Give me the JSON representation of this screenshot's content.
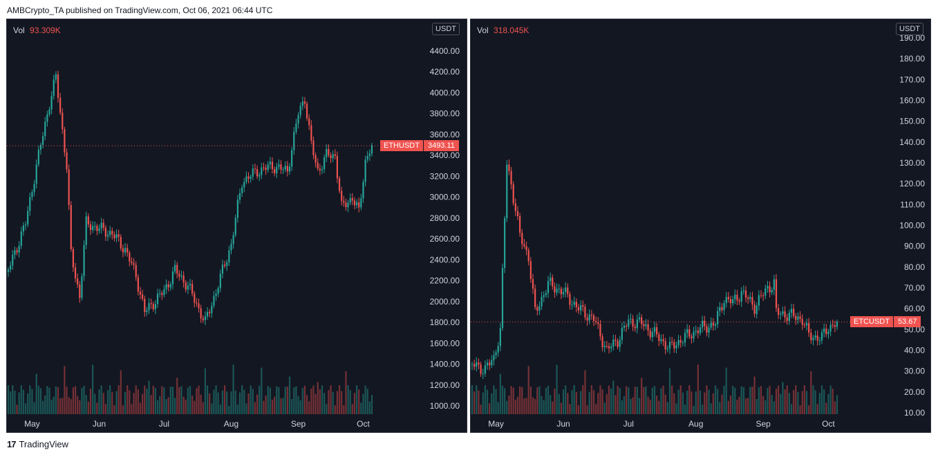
{
  "header": {
    "text": "AMBCrypto_TA published on TradingView.com, Oct 06, 2021 06:44 UTC"
  },
  "footer": {
    "brand": "TradingView",
    "logo_text": "17"
  },
  "colors": {
    "up": "#26a69a",
    "down": "#ef5350",
    "background": "#131722",
    "text": "#d1d4dc"
  },
  "chart_data": [
    {
      "type": "candlestick",
      "symbol": "ETHUSDT",
      "currency": "USDT",
      "last_price": "3493.11",
      "volume_label": "Vol",
      "volume_value": "93.309K",
      "x_tick_labels": [
        "May",
        "Jun",
        "Jul",
        "Aug",
        "Sep",
        "Oct"
      ],
      "y_tick_labels": [
        "4400.00",
        "4200.00",
        "4000.00",
        "3800.00",
        "3600.00",
        "3400.00",
        "3200.00",
        "3000.00",
        "2800.00",
        "2600.00",
        "2400.00",
        "2200.00",
        "2000.00",
        "1800.00",
        "1600.00",
        "1400.00",
        "1200.00",
        "1000.00"
      ],
      "ylim": [
        1000,
        4400
      ],
      "anchors": [
        {
          "date": "2021-04-20",
          "price": 2300
        },
        {
          "date": "2021-04-28",
          "price": 2750
        },
        {
          "date": "2021-05-03",
          "price": 3300
        },
        {
          "date": "2021-05-09",
          "price": 3900
        },
        {
          "date": "2021-05-12",
          "price": 4150
        },
        {
          "date": "2021-05-17",
          "price": 3300
        },
        {
          "date": "2021-05-19",
          "price": 2450
        },
        {
          "date": "2021-05-23",
          "price": 2050
        },
        {
          "date": "2021-05-26",
          "price": 2750
        },
        {
          "date": "2021-06-01",
          "price": 2700
        },
        {
          "date": "2021-06-07",
          "price": 2650
        },
        {
          "date": "2021-06-13",
          "price": 2500
        },
        {
          "date": "2021-06-18",
          "price": 2250
        },
        {
          "date": "2021-06-22",
          "price": 1900
        },
        {
          "date": "2021-07-01",
          "price": 2100
        },
        {
          "date": "2021-07-06",
          "price": 2300
        },
        {
          "date": "2021-07-12",
          "price": 2150
        },
        {
          "date": "2021-07-20",
          "price": 1800
        },
        {
          "date": "2021-07-25",
          "price": 2100
        },
        {
          "date": "2021-08-01",
          "price": 2550
        },
        {
          "date": "2021-08-06",
          "price": 3150
        },
        {
          "date": "2021-08-13",
          "price": 3250
        },
        {
          "date": "2021-08-20",
          "price": 3300
        },
        {
          "date": "2021-08-27",
          "price": 3250
        },
        {
          "date": "2021-09-01",
          "price": 3800
        },
        {
          "date": "2021-09-04",
          "price": 3950
        },
        {
          "date": "2021-09-07",
          "price": 3500
        },
        {
          "date": "2021-09-10",
          "price": 3250
        },
        {
          "date": "2021-09-14",
          "price": 3400
        },
        {
          "date": "2021-09-18",
          "price": 3400
        },
        {
          "date": "2021-09-21",
          "price": 2900
        },
        {
          "date": "2021-09-26",
          "price": 3000
        },
        {
          "date": "2021-09-29",
          "price": 2850
        },
        {
          "date": "2021-10-02",
          "price": 3350
        },
        {
          "date": "2021-10-05",
          "price": 3500
        }
      ]
    },
    {
      "type": "candlestick",
      "symbol": "ETCUSDT",
      "currency": "USDT",
      "last_price": "53.67",
      "volume_label": "Vol",
      "volume_value": "318.045K",
      "x_tick_labels": [
        "May",
        "Jun",
        "Jul",
        "Aug",
        "Sep",
        "Oct"
      ],
      "y_tick_labels": [
        "190.00",
        "180.00",
        "170.00",
        "160.00",
        "150.00",
        "140.00",
        "130.00",
        "120.00",
        "110.00",
        "100.00",
        "90.00",
        "80.00",
        "70.00",
        "60.00",
        "50.00",
        "40.00",
        "30.00",
        "20.00",
        "10.00"
      ],
      "ylim": [
        10,
        190
      ],
      "anchors": [
        {
          "date": "2021-04-20",
          "price": 33
        },
        {
          "date": "2021-04-26",
          "price": 31
        },
        {
          "date": "2021-04-30",
          "price": 36
        },
        {
          "date": "2021-05-03",
          "price": 50
        },
        {
          "date": "2021-05-06",
          "price": 130
        },
        {
          "date": "2021-05-08",
          "price": 120
        },
        {
          "date": "2021-05-12",
          "price": 95
        },
        {
          "date": "2021-05-16",
          "price": 85
        },
        {
          "date": "2021-05-19",
          "price": 58
        },
        {
          "date": "2021-05-22",
          "price": 65
        },
        {
          "date": "2021-05-25",
          "price": 72
        },
        {
          "date": "2021-06-01",
          "price": 68
        },
        {
          "date": "2021-06-08",
          "price": 60
        },
        {
          "date": "2021-06-15",
          "price": 55
        },
        {
          "date": "2021-06-21",
          "price": 40
        },
        {
          "date": "2021-06-26",
          "price": 45
        },
        {
          "date": "2021-07-01",
          "price": 54
        },
        {
          "date": "2021-07-07",
          "price": 53
        },
        {
          "date": "2021-07-15",
          "price": 46
        },
        {
          "date": "2021-07-20",
          "price": 41
        },
        {
          "date": "2021-07-25",
          "price": 45
        },
        {
          "date": "2021-08-02",
          "price": 50
        },
        {
          "date": "2021-08-10",
          "price": 53
        },
        {
          "date": "2021-08-14",
          "price": 65
        },
        {
          "date": "2021-08-18",
          "price": 63
        },
        {
          "date": "2021-08-22",
          "price": 68
        },
        {
          "date": "2021-08-28",
          "price": 61
        },
        {
          "date": "2021-09-03",
          "price": 70
        },
        {
          "date": "2021-09-06",
          "price": 72
        },
        {
          "date": "2021-09-07",
          "price": 58
        },
        {
          "date": "2021-09-13",
          "price": 57
        },
        {
          "date": "2021-09-19",
          "price": 55
        },
        {
          "date": "2021-09-22",
          "price": 47
        },
        {
          "date": "2021-09-28",
          "price": 46
        },
        {
          "date": "2021-10-01",
          "price": 51
        },
        {
          "date": "2021-10-05",
          "price": 53.7
        }
      ]
    }
  ]
}
